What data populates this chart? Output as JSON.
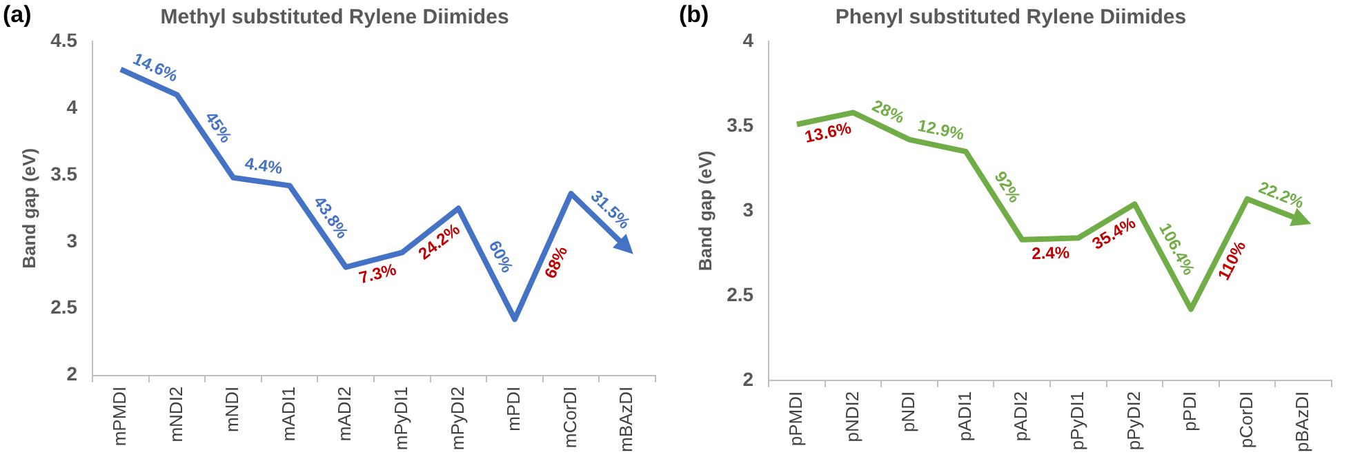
{
  "chart_data": [
    {
      "type": "line",
      "title": "Methyl substituted Rylene Diimides",
      "ylabel": "Band gap (eV)",
      "categories": [
        "mPMDI",
        "mNDI2",
        "mNDI",
        "mADI1",
        "mADI2",
        "mPyDI1",
        "mPyDI2",
        "mPDI",
        "mCorDI",
        "mBAzDI"
      ],
      "series": [
        {
          "color": "#4472c4",
          "values": [
            4.29,
            4.1,
            3.48,
            3.42,
            2.81,
            2.92,
            3.25,
            2.42,
            3.36,
            2.95
          ]
        }
      ],
      "ylim": [
        2,
        4.5
      ],
      "yticks": [
        2,
        2.5,
        3,
        3.5,
        4,
        4.5
      ],
      "grid": false,
      "legend": false,
      "marker": "none",
      "line_style": "solid",
      "annotations": [
        "(a)",
        "14.6%",
        "45%",
        "4.4%",
        "43.8%",
        "7.3%",
        "24.2%",
        "60%",
        "68%",
        "31.5%"
      ]
    },
    {
      "type": "line",
      "title": "Phenyl substituted Rylene Diimides",
      "ylabel": "Band gap (eV)",
      "categories": [
        "pPMDI",
        "pNDI2",
        "pNDI",
        "pADI1",
        "pADI2",
        "pPyDI1",
        "pPyDI2",
        "pPDI",
        "pCorDI",
        "pBAzDI"
      ],
      "series": [
        {
          "color": "#70ad47",
          "values": [
            3.51,
            3.58,
            3.42,
            3.35,
            2.83,
            2.84,
            3.04,
            2.42,
            3.07,
            2.94
          ]
        }
      ],
      "ylim": [
        2,
        4
      ],
      "yticks": [
        2,
        2.5,
        3,
        3.5,
        4
      ],
      "grid": false,
      "legend": false,
      "marker": "none",
      "line_style": "solid",
      "annotations": [
        "(b)",
        "13.6%",
        "28%",
        "12.9%",
        "92%",
        "2.4%",
        "35.4%",
        "106.4%",
        "110%",
        "22.2%"
      ]
    }
  ]
}
